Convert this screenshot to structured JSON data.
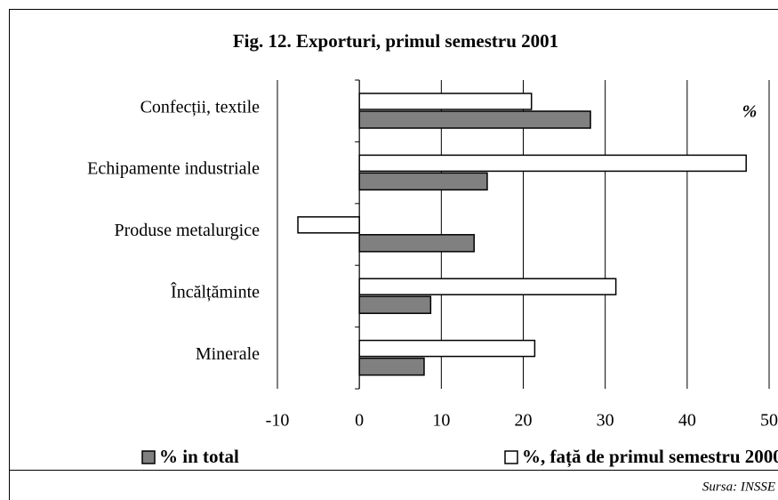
{
  "chart_data": {
    "type": "hbar",
    "title": "Fig. 12. Exporturi, primul semestru 2001",
    "annotation": "%",
    "source": "Sursa: INSSE",
    "categories": [
      "Confecții, textile",
      "Echipamente industriale",
      "Produse metalurgice",
      "Încălțăminte",
      "Minerale"
    ],
    "series": [
      {
        "name": "% in total",
        "color": "#808080",
        "values": [
          28.2,
          15.6,
          14.0,
          8.7,
          7.9
        ]
      },
      {
        "name": "%, față de primul semestru 2000",
        "color": "#ffffff",
        "values": [
          21.0,
          47.2,
          -7.5,
          31.3,
          21.4
        ]
      }
    ],
    "xlim": [
      -10,
      50
    ],
    "xticks": [
      -10,
      0,
      10,
      20,
      30,
      40,
      50
    ],
    "grid": true
  }
}
